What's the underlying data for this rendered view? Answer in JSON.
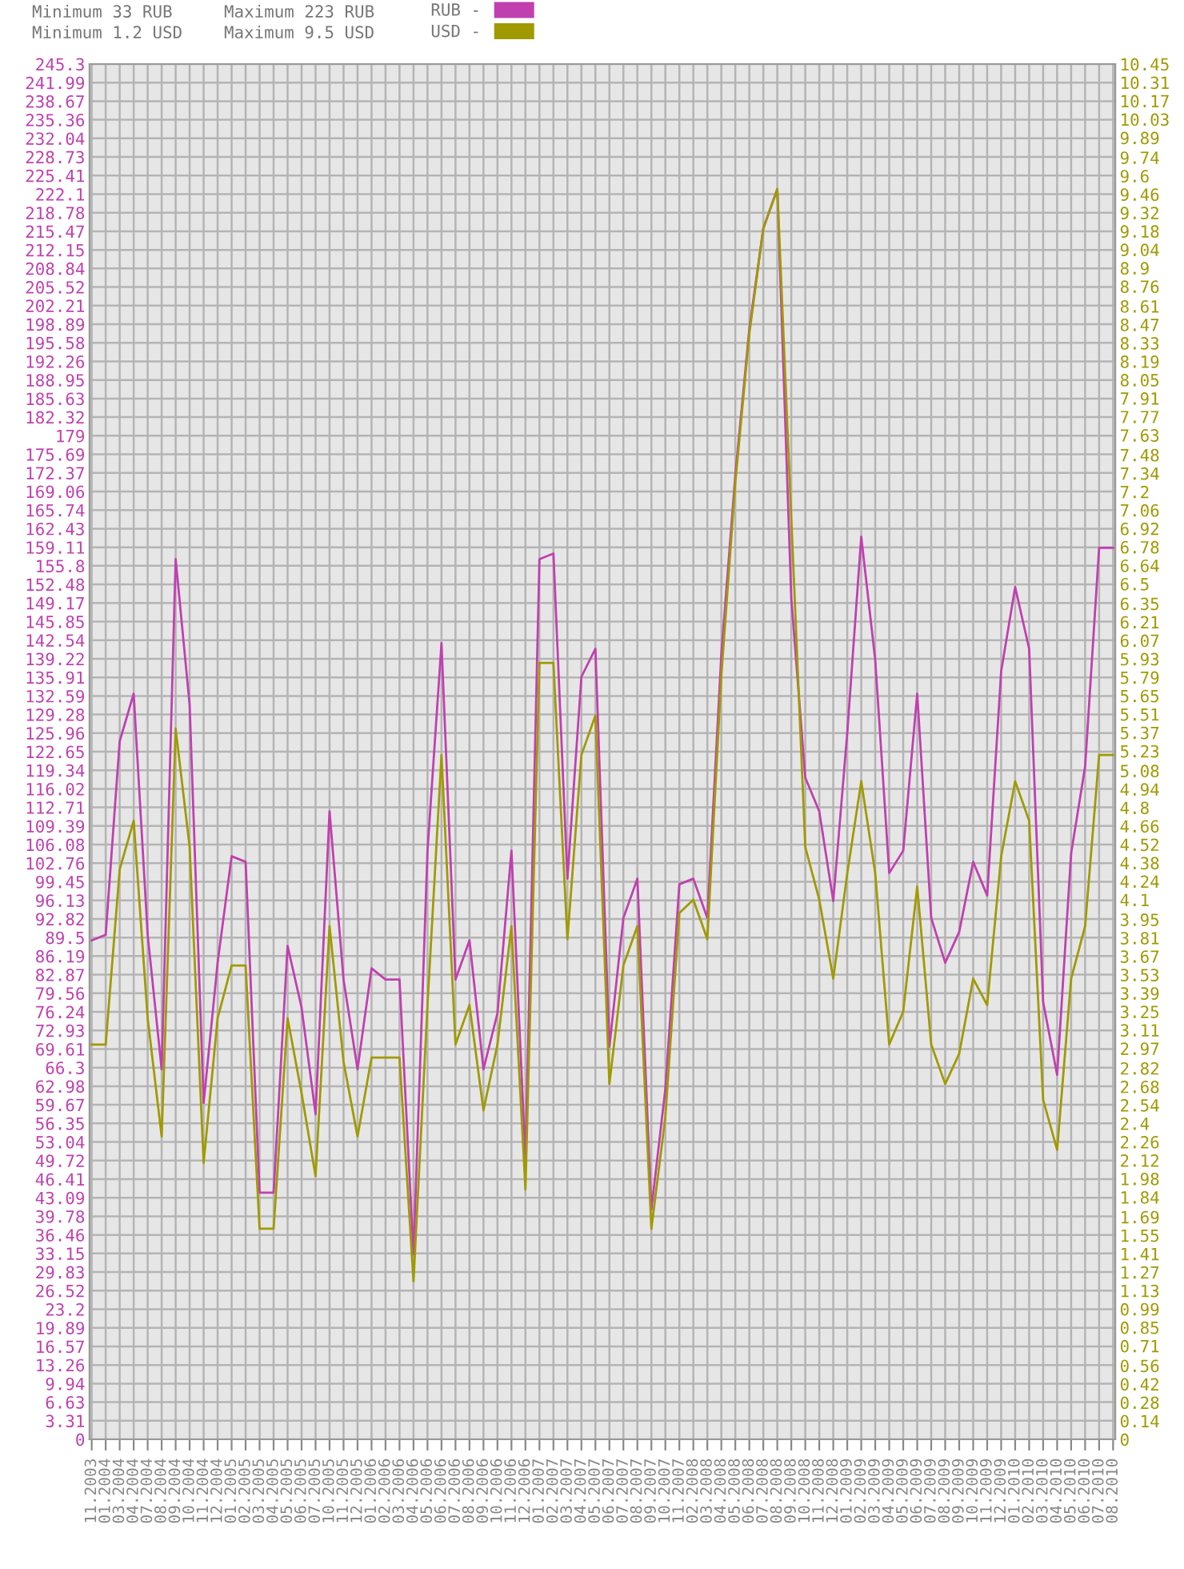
{
  "chart_data": {
    "type": "line",
    "categories": [
      "11.2003",
      "01.2004",
      "03.2004",
      "04.2004",
      "07.2004",
      "08.2004",
      "09.2004",
      "10.2004",
      "11.2004",
      "12.2004",
      "01.2005",
      "02.2005",
      "03.2005",
      "04.2005",
      "05.2005",
      "06.2005",
      "07.2005",
      "10.2005",
      "11.2005",
      "12.2005",
      "01.2006",
      "02.2006",
      "03.2006",
      "04.2006",
      "05.2006",
      "06.2006",
      "07.2006",
      "08.2006",
      "09.2006",
      "10.2006",
      "11.2006",
      "12.2006",
      "01.2007",
      "02.2007",
      "03.2007",
      "04.2007",
      "05.2007",
      "06.2007",
      "07.2007",
      "08.2007",
      "09.2007",
      "10.2007",
      "11.2007",
      "02.2008",
      "03.2008",
      "04.2008",
      "05.2008",
      "06.2008",
      "07.2008",
      "08.2008",
      "09.2008",
      "10.2008",
      "11.2008",
      "12.2008",
      "01.2009",
      "02.2009",
      "03.2009",
      "04.2009",
      "05.2009",
      "06.2009",
      "07.2009",
      "08.2009",
      "09.2009",
      "10.2009",
      "11.2009",
      "12.2009",
      "01.2010",
      "02.2010",
      "03.2010",
      "04.2010",
      "05.2010",
      "06.2010",
      "07.2010",
      "08.2010"
    ],
    "series": [
      {
        "name": "RUB -",
        "color": "#c040b0",
        "values": [
          89,
          90,
          124.5,
          133,
          90,
          66,
          157,
          131,
          60,
          85,
          104,
          103,
          44,
          44,
          88,
          77,
          58,
          112,
          82,
          66,
          84,
          82,
          82,
          33,
          105,
          142,
          82,
          89,
          66,
          76,
          105,
          50,
          157,
          158,
          100,
          136,
          141,
          70,
          93,
          100,
          41,
          62.5,
          99,
          100,
          93,
          140,
          172,
          198,
          216,
          223,
          150,
          118,
          112,
          96,
          126,
          161,
          139,
          101,
          105,
          133,
          93,
          85,
          90.5,
          103,
          97,
          137,
          152,
          141,
          78,
          65,
          104.5,
          120,
          159,
          159
        ]
      },
      {
        "name": "USD -",
        "color": "#a09a00",
        "axis": "y2",
        "values": [
          3.0,
          3.0,
          4.33,
          4.7,
          3.2,
          2.3,
          5.4,
          4.5,
          2.1,
          3.2,
          3.6,
          3.6,
          1.6,
          1.6,
          3.2,
          2.63,
          2.0,
          3.9,
          2.87,
          2.3,
          2.9,
          2.9,
          2.9,
          1.2,
          3.3,
          5.2,
          3.0,
          3.3,
          2.5,
          3.0,
          3.9,
          1.9,
          5.9,
          5.9,
          3.8,
          5.2,
          5.5,
          2.7,
          3.6,
          3.9,
          1.6,
          2.45,
          4.0,
          4.1,
          3.8,
          5.8,
          7.27,
          8.4,
          9.2,
          9.5,
          7.0,
          4.5,
          4.1,
          3.5,
          4.3,
          5.0,
          4.3,
          3.0,
          3.25,
          4.2,
          3.0,
          2.7,
          2.93,
          3.5,
          3.3,
          4.43,
          5.0,
          4.7,
          2.58,
          2.2,
          3.5,
          3.9,
          5.2,
          5.2
        ]
      }
    ],
    "ylim": [
      0,
      245.3
    ],
    "yticks": [
      0,
      3.31,
      6.63,
      9.94,
      13.26,
      16.57,
      19.89,
      23.2,
      26.52,
      29.83,
      33.15,
      36.46,
      39.78,
      43.09,
      46.41,
      49.72,
      53.04,
      56.35,
      59.67,
      62.98,
      66.3,
      69.61,
      72.93,
      76.24,
      79.56,
      82.87,
      86.19,
      89.5,
      92.82,
      96.13,
      99.45,
      102.76,
      106.08,
      109.39,
      112.71,
      116.02,
      119.34,
      122.65,
      125.96,
      129.28,
      132.59,
      135.91,
      139.22,
      142.54,
      145.85,
      149.17,
      152.48,
      155.8,
      159.11,
      162.43,
      165.74,
      169.06,
      172.37,
      175.69,
      179,
      182.32,
      185.63,
      188.95,
      192.26,
      195.58,
      198.89,
      202.21,
      205.52,
      208.84,
      212.15,
      215.47,
      218.78,
      222.1,
      225.41,
      228.73,
      232.04,
      235.36,
      238.67,
      241.99,
      245.3
    ],
    "y2lim": [
      0,
      10.45
    ],
    "y2ticks": [
      0,
      0.14,
      0.28,
      0.42,
      0.56,
      0.71,
      0.85,
      0.99,
      1.13,
      1.27,
      1.41,
      1.55,
      1.69,
      1.84,
      1.98,
      2.12,
      2.26,
      2.4,
      2.54,
      2.68,
      2.82,
      2.97,
      3.11,
      3.25,
      3.39,
      3.53,
      3.67,
      3.81,
      3.95,
      4.1,
      4.24,
      4.38,
      4.52,
      4.66,
      4.8,
      4.94,
      5.08,
      5.23,
      5.37,
      5.51,
      5.65,
      5.79,
      5.93,
      6.07,
      6.21,
      6.35,
      6.5,
      6.64,
      6.78,
      6.92,
      7.06,
      7.2,
      7.34,
      7.48,
      7.63,
      7.77,
      7.91,
      8.05,
      8.19,
      8.33,
      8.47,
      8.61,
      8.76,
      8.9,
      9.04,
      9.18,
      9.32,
      9.46,
      9.6,
      9.74,
      9.89,
      10.03,
      10.17,
      10.31,
      10.45
    ],
    "annotations": [
      "Minimum 33 RUB",
      "Minimum 1.2 USD",
      "Maximum 223 RUB",
      "Maximum 9.5 USD"
    ],
    "grid": true,
    "legend": "top"
  }
}
